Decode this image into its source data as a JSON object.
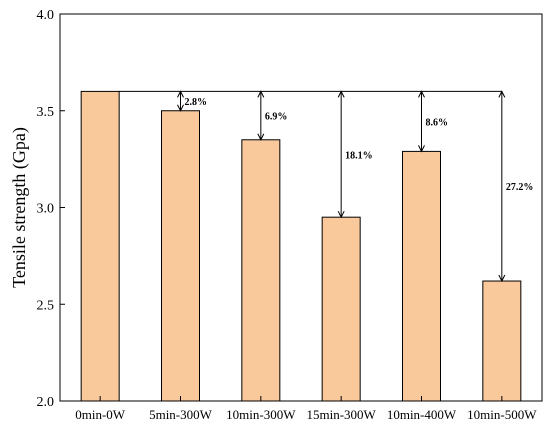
{
  "chart_data": {
    "type": "bar",
    "categories": [
      "0min-0W",
      "5min-300W",
      "10min-300W",
      "15min-300W",
      "10min-400W",
      "10min-500W"
    ],
    "values": [
      3.6,
      3.5,
      3.35,
      2.95,
      3.29,
      2.62
    ],
    "ylabel": "Tensile strength (Gpa)",
    "ylim": [
      2.0,
      4.0
    ],
    "yticks": [
      "2.0",
      "2.5",
      "3.0",
      "3.5",
      "4.0"
    ],
    "ytick_values": [
      2.0,
      2.5,
      3.0,
      3.5,
      4.0
    ],
    "reference_value": 3.6,
    "reductions": [
      "",
      "2.8%",
      "6.9%",
      "18.1%",
      "8.6%",
      "27.2%"
    ],
    "bar_color": "#F9C89B",
    "grid": false,
    "legend": "none"
  }
}
